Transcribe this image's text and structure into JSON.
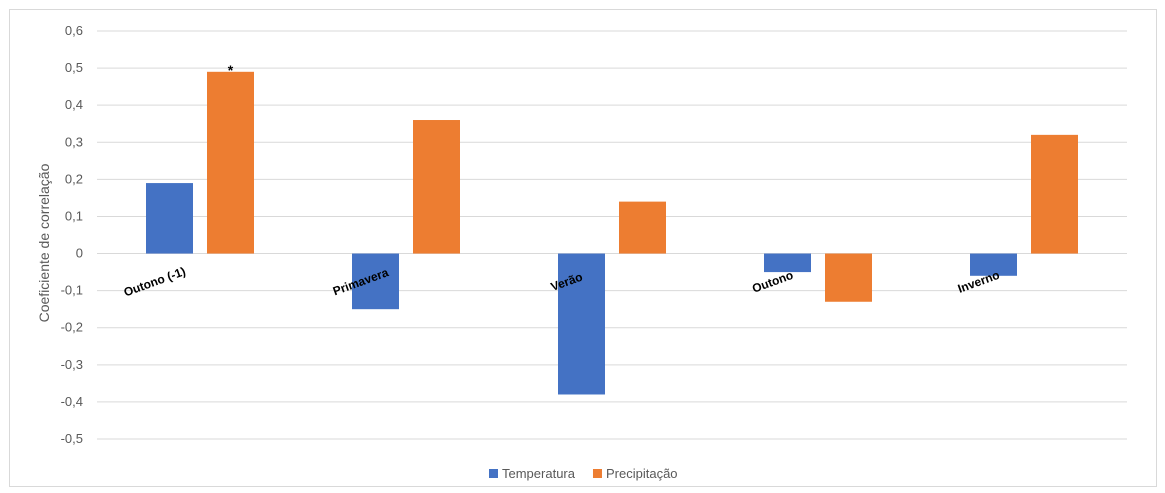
{
  "chart_data": {
    "type": "bar",
    "categories": [
      "Outono (-1)",
      "Primavera",
      "Verão",
      "Outono",
      "Inverno"
    ],
    "series": [
      {
        "name": "Temperatura",
        "color": "#4472C4",
        "values": [
          0.19,
          -0.15,
          -0.38,
          -0.05,
          -0.06
        ]
      },
      {
        "name": "Precipitação",
        "color": "#ED7D31",
        "values": [
          0.49,
          0.36,
          0.14,
          -0.13,
          0.32
        ]
      }
    ],
    "ylabel": "Coeficiente de correlação",
    "ylim": [
      -0.5,
      0.6
    ],
    "yticks": [
      0.6,
      0.5,
      0.4,
      0.3,
      0.2,
      0.1,
      0,
      -0.1,
      -0.2,
      -0.3,
      -0.4,
      -0.5
    ],
    "ytick_labels": [
      "0,6",
      "0,5",
      "0,4",
      "0,3",
      "0,2",
      "0,1",
      "0",
      "-0,1",
      "-0,2",
      "-0,3",
      "-0,4",
      "-0,5"
    ],
    "grid": true,
    "legend": "bottom",
    "annotations": [
      {
        "text": "*",
        "category": "Outono (-1)",
        "series": "Precipitação"
      }
    ]
  }
}
